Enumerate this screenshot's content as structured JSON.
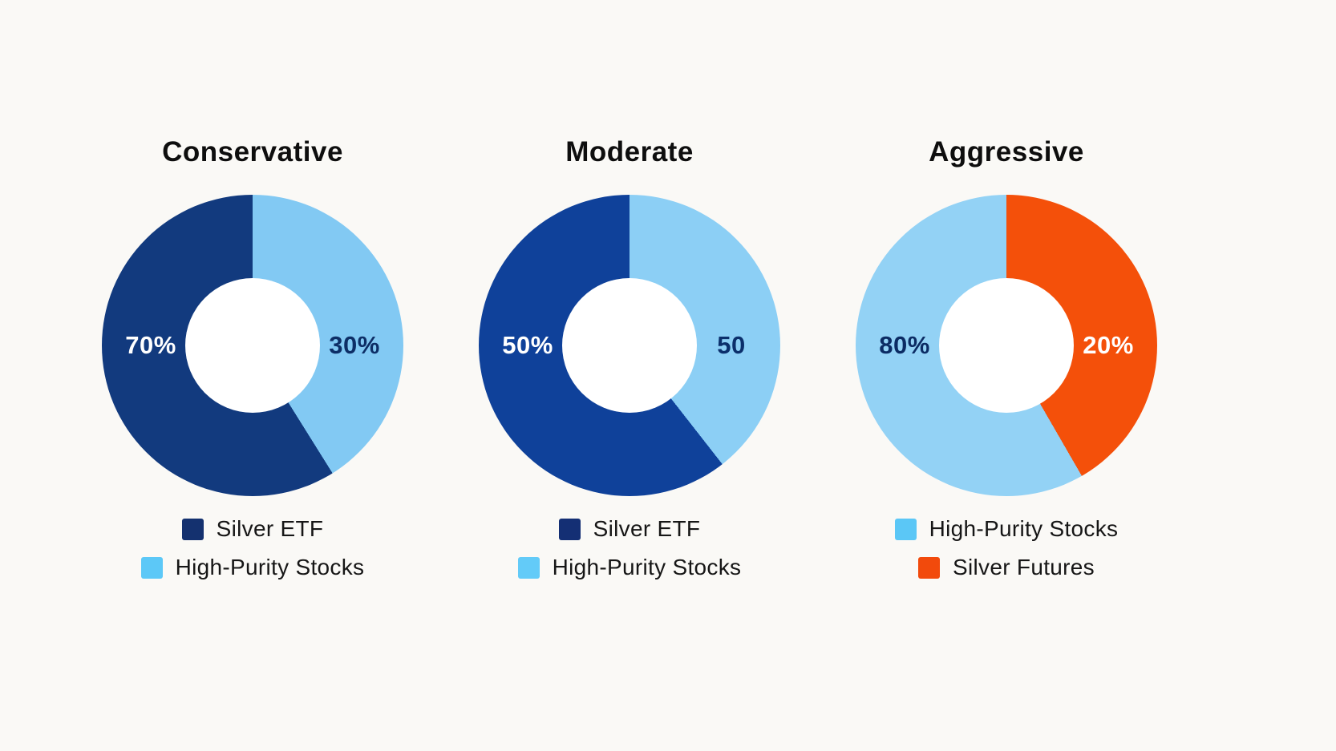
{
  "page": {
    "background_color": "#FAF9F6",
    "hole_color": "#FFFFFF"
  },
  "chart_data": [
    {
      "type": "pie",
      "donut": true,
      "title": "Conservative",
      "labels": [
        "Silver ETF",
        "High-Purity Stocks"
      ],
      "values": [
        70,
        30
      ],
      "slice_labels": [
        "70%",
        "30%"
      ],
      "colors": [
        "#123A7E",
        "#82C9F3"
      ],
      "legend_colors": [
        "#14316F",
        "#5CC8F7"
      ],
      "slice_label_colors": [
        "#FFFFFF",
        "#0D2E66"
      ],
      "split_deg": 148,
      "legend_position": "bottom-center"
    },
    {
      "type": "pie",
      "donut": true,
      "title": "Moderate",
      "labels": [
        "Silver ETF",
        "High-Purity Stocks"
      ],
      "values": [
        50,
        50
      ],
      "slice_labels": [
        "50%",
        "50"
      ],
      "colors": [
        "#0F419A",
        "#8CCFF5"
      ],
      "legend_colors": [
        "#142F74",
        "#63CBF8"
      ],
      "slice_label_colors": [
        "#FFFFFF",
        "#0B2F6B"
      ],
      "split_deg": 142,
      "legend_position": "bottom-center"
    },
    {
      "type": "pie",
      "donut": true,
      "title": "Aggressive",
      "labels": [
        "High-Purity Stocks",
        "Silver Futures"
      ],
      "values": [
        80,
        20
      ],
      "slice_labels": [
        "80%",
        "20%"
      ],
      "colors": [
        "#93D2F5",
        "#F4500A"
      ],
      "legend_colors": [
        "#5BC7F6",
        "#F24A0C"
      ],
      "slice_label_colors": [
        "#0B2B63",
        "#FFFFFF"
      ],
      "split_deg": 150,
      "legend_position": "bottom-center"
    }
  ]
}
